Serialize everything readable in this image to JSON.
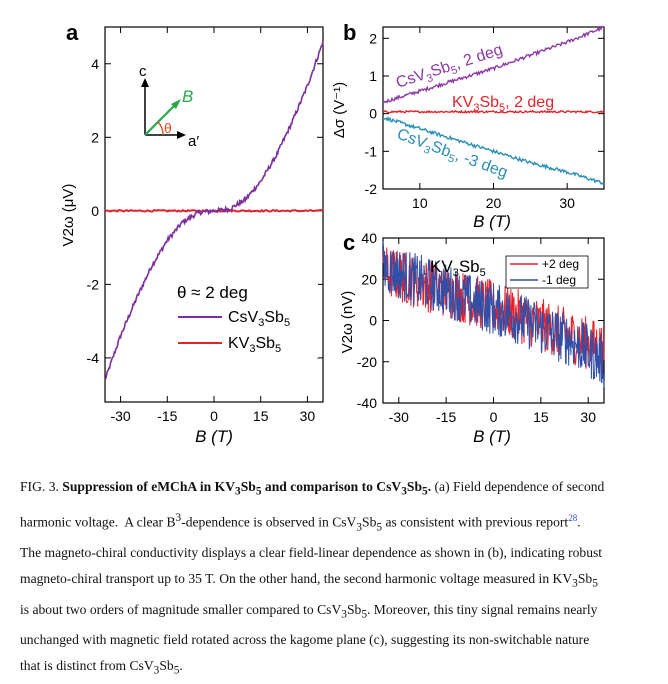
{
  "figure": {
    "panel_a": {
      "label": "a",
      "ylabel": "V2ω (μV)",
      "xlabel": "B (T)",
      "yticks": [
        "4",
        "2",
        "0",
        "-2",
        "-4"
      ],
      "xticks": [
        "-30",
        "-15",
        "0",
        "15",
        "30"
      ],
      "inset": {
        "c_label": "c",
        "a_label": "a′",
        "b_label": "B",
        "theta_label": "θ"
      },
      "legend": {
        "title": "θ ≈ 2 deg",
        "items": [
          "CsV3Sb5",
          "KV3Sb5"
        ]
      },
      "colors": {
        "csv3sb5": "#7b2f9e",
        "kv3sb5": "#e0242c"
      }
    },
    "panel_b": {
      "label": "b",
      "ylabel": "Δσ (V⁻¹)",
      "xlabel": "B (T)",
      "yticks": [
        "2",
        "1",
        "0",
        "-1",
        "-2"
      ],
      "xticks": [
        "10",
        "20",
        "30"
      ],
      "annotations": [
        "CsV3Sb5, 2 deg",
        "KV3Sb5, 2 deg",
        "CsV3Sb5, -3 deg"
      ],
      "colors": {
        "cs_2": "#8e3aa6",
        "kv_2": "#e0242c",
        "cs_m3": "#2a8fb5"
      }
    },
    "panel_c": {
      "label": "c",
      "ylabel": "V2ω (nV)",
      "xlabel": "B (T)",
      "yticks": [
        "40",
        "20",
        "0",
        "-20",
        "-40"
      ],
      "xticks": [
        "-30",
        "-15",
        "0",
        "15",
        "30"
      ],
      "title": "KV3Sb5",
      "legend": [
        "+2 deg",
        "-1 deg"
      ],
      "colors": {
        "plus2": "#e8202a",
        "minus1": "#2f4fa8"
      }
    }
  },
  "chart_data": [
    {
      "type": "line",
      "panel": "a",
      "xlabel": "B (T)",
      "ylabel": "V2ω (μV)",
      "xlim": [
        -35,
        35
      ],
      "ylim": [
        -5.2,
        5
      ],
      "series": [
        {
          "name": "CsV3Sb5",
          "x": [
            -35,
            -30,
            -25,
            -20,
            -15,
            -10,
            -5,
            0,
            5,
            10,
            15,
            20,
            25,
            30,
            35
          ],
          "y": [
            -4.6,
            -3.4,
            -2.4,
            -1.5,
            -0.8,
            -0.3,
            -0.05,
            0,
            0.05,
            0.3,
            0.8,
            1.5,
            2.4,
            3.4,
            4.6
          ]
        },
        {
          "name": "KV3Sb5",
          "x": [
            -35,
            -15,
            0,
            15,
            35
          ],
          "y": [
            0.0,
            0.0,
            0.0,
            0.0,
            0.0
          ]
        }
      ]
    },
    {
      "type": "line",
      "panel": "b",
      "xlabel": "B (T)",
      "ylabel": "Δσ (V⁻¹)",
      "xlim": [
        5,
        35
      ],
      "ylim": [
        -2,
        2.3
      ],
      "series": [
        {
          "name": "CsV3Sb5, 2 deg",
          "x": [
            5,
            10,
            15,
            20,
            25,
            30,
            35
          ],
          "y": [
            0.3,
            0.6,
            0.9,
            1.2,
            1.55,
            1.9,
            2.3
          ]
        },
        {
          "name": "KV3Sb5, 2 deg",
          "x": [
            5,
            10,
            15,
            20,
            25,
            30,
            35
          ],
          "y": [
            0.05,
            0.05,
            0.05,
            0.05,
            0.05,
            0.05,
            0.05
          ]
        },
        {
          "name": "CsV3Sb5, -3 deg",
          "x": [
            5,
            10,
            15,
            20,
            25,
            30,
            35
          ],
          "y": [
            -0.1,
            -0.4,
            -0.7,
            -1.0,
            -1.3,
            -1.55,
            -1.85
          ]
        }
      ]
    },
    {
      "type": "line",
      "panel": "c",
      "title": "KV3Sb5",
      "xlabel": "B (T)",
      "ylabel": "V2ω (nV)",
      "xlim": [
        -35,
        35
      ],
      "ylim": [
        -40,
        40
      ],
      "series": [
        {
          "name": "+2 deg",
          "x": [
            -35,
            -25,
            -15,
            -5,
            5,
            15,
            25,
            35
          ],
          "y": [
            24,
            19,
            14,
            9,
            4,
            -2,
            -8,
            -14
          ]
        },
        {
          "name": "-1 deg",
          "x": [
            -35,
            -25,
            -15,
            -5,
            5,
            15,
            25,
            35
          ],
          "y": [
            26,
            20,
            15,
            8,
            3,
            -4,
            -10,
            -20
          ]
        }
      ]
    }
  ],
  "caption": {
    "fig": "FIG. 3.",
    "bold": "Suppression of eMChA in KV3Sb5 and comparison to CsV3Sb5.",
    "lines": [
      "(a) Field dependence of second",
      "harmonic voltage.  A clear B3-dependence is observed in CsV3Sb5 as consistent with previous report28.",
      "The magneto-chiral conductivity displays a clear field-linear dependence as shown in (b), indicating robust",
      "magneto-chiral transport up to 35 T. On the other hand, the second harmonic voltage measured in KV3Sb5",
      "is about two orders of magnitude smaller compared to CsV3Sb5. Moreover, this tiny signal remains nearly",
      "unchanged with magnetic field rotated across the kagome plane (c), suggesting its non-switchable nature",
      "that is distinct from CsV3Sb5."
    ]
  }
}
